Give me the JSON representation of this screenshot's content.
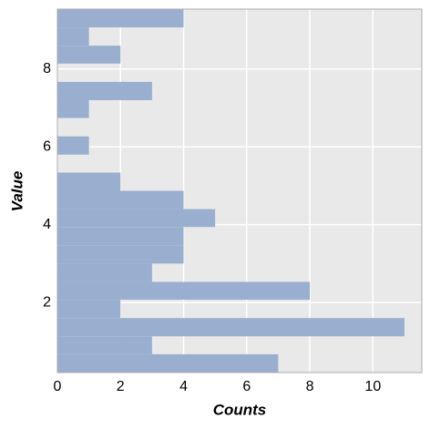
{
  "chart_data": {
    "type": "histogram",
    "orientation": "horizontal",
    "xlabel": "Counts",
    "ylabel": "Value",
    "bins": [
      0.2,
      0.67,
      1.13,
      1.6,
      2.07,
      2.53,
      3.0,
      3.47,
      3.94,
      4.4,
      4.87,
      5.34,
      5.8,
      6.27,
      6.74,
      7.2,
      7.67,
      8.14,
      8.6,
      9.07,
      9.54
    ],
    "values": [
      7,
      3,
      11,
      2,
      8,
      3,
      4,
      4,
      5,
      4,
      2,
      0,
      1,
      0,
      1,
      3,
      0,
      2,
      1,
      4
    ],
    "color": "#9aafd0",
    "xlim": [
      0,
      11.55
    ],
    "xticks": [
      0,
      2,
      4,
      6,
      8,
      10
    ],
    "ylim": [
      0.2,
      9.54
    ],
    "yticks": [
      2,
      4,
      6,
      8
    ],
    "grid": true
  }
}
